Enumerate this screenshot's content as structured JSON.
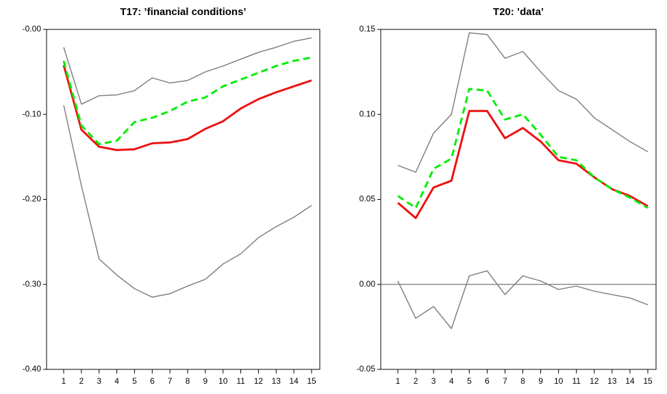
{
  "chart_data": [
    {
      "type": "line",
      "title": "T17: ’financial conditions’",
      "categories": [
        "1",
        "2",
        "3",
        "4",
        "5",
        "6",
        "7",
        "8",
        "9",
        "10",
        "11",
        "12",
        "13",
        "14",
        "15"
      ],
      "ylim": [
        -0.4,
        0
      ],
      "yticks": [
        {
          "value": 0,
          "label": "-0.00"
        },
        {
          "value": -0.1,
          "label": "-0.10"
        },
        {
          "value": -0.2,
          "label": "-0.20"
        },
        {
          "value": -0.3,
          "label": "-0.30"
        },
        {
          "value": -0.4,
          "label": "-0.40"
        }
      ],
      "series": [
        {
          "color": "#808080",
          "values": [
            -0.021,
            -0.088,
            -0.078,
            -0.077,
            -0.072,
            -0.057,
            -0.063,
            -0.06,
            -0.05,
            -0.043,
            -0.035,
            -0.027,
            -0.021,
            -0.014,
            -0.01
          ]
        },
        {
          "color": "#808080",
          "values": [
            -0.089,
            -0.184,
            -0.27,
            -0.289,
            -0.305,
            -0.315,
            -0.311,
            -0.302,
            -0.294,
            -0.276,
            -0.264,
            -0.245,
            -0.232,
            -0.221,
            -0.207
          ]
        },
        {
          "color": "#ee1111",
          "values": [
            -0.042,
            -0.118,
            -0.138,
            -0.142,
            -0.141,
            -0.134,
            -0.133,
            -0.129,
            -0.117,
            -0.108,
            -0.093,
            -0.082,
            -0.074,
            -0.067,
            -0.06
          ]
        },
        {
          "color": "#00ee00",
          "style": "dashed",
          "values": [
            -0.037,
            -0.113,
            -0.135,
            -0.131,
            -0.109,
            -0.104,
            -0.096,
            -0.085,
            -0.08,
            -0.067,
            -0.059,
            -0.051,
            -0.043,
            -0.037,
            -0.033
          ]
        }
      ]
    },
    {
      "type": "line",
      "title": "T20: ’data’",
      "categories": [
        "1",
        "2",
        "3",
        "4",
        "5",
        "6",
        "7",
        "8",
        "9",
        "10",
        "11",
        "12",
        "13",
        "14",
        "15"
      ],
      "ylim": [
        -0.05,
        0.15
      ],
      "yticks": [
        0.15,
        {
          "value": 0.1,
          "label": "0.10"
        },
        0.05,
        {
          "value": 0,
          "label": "0.00"
        },
        -0.05
      ],
      "hline": 0,
      "series": [
        {
          "color": "#808080",
          "values": [
            0.07,
            0.066,
            0.089,
            0.1,
            0.148,
            0.147,
            0.133,
            0.137,
            0.125,
            0.114,
            0.109,
            0.098,
            0.091,
            0.084,
            0.078
          ]
        },
        {
          "color": "#808080",
          "values": [
            0.002,
            -0.02,
            -0.013,
            -0.026,
            0.005,
            0.008,
            -0.006,
            0.005,
            0.002,
            -0.003,
            -0.001,
            -0.004,
            -0.006,
            -0.008,
            -0.012
          ]
        },
        {
          "color": "#ee1111",
          "values": [
            0.048,
            0.039,
            0.057,
            0.061,
            0.102,
            0.102,
            0.086,
            0.092,
            0.084,
            0.073,
            0.071,
            0.063,
            0.056,
            0.052,
            0.046
          ]
        },
        {
          "color": "#00ee00",
          "style": "dashed",
          "values": [
            0.052,
            0.045,
            0.068,
            0.074,
            0.115,
            0.114,
            0.097,
            0.1,
            0.088,
            0.075,
            0.073,
            0.063,
            0.056,
            0.051,
            0.045
          ]
        }
      ]
    }
  ]
}
